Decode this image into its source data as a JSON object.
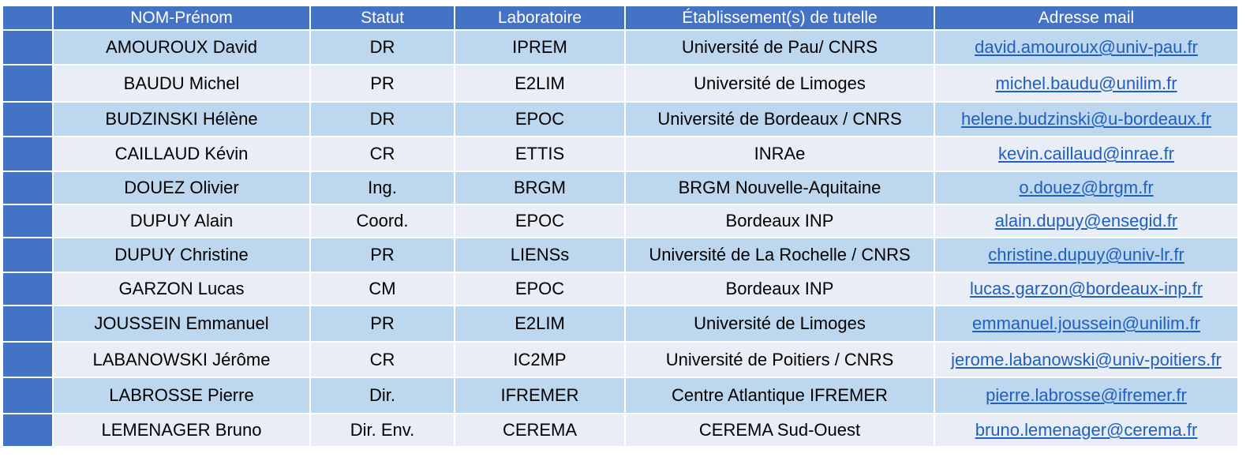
{
  "table": {
    "headers": [
      "NOM-Prénom",
      "Statut",
      "Laboratoire",
      "Établissement(s) de tutelle",
      "Adresse mail"
    ],
    "rows": [
      {
        "name": "AMOUROUX David",
        "status": "DR",
        "lab": "IPREM",
        "institution": "Université de Pau/ CNRS",
        "email": "david.amouroux@univ-pau.fr"
      },
      {
        "name": "BAUDU Michel",
        "status": "PR",
        "lab": "E2LIM",
        "institution": "Université de Limoges",
        "email": "michel.baudu@unilim.fr"
      },
      {
        "name": "BUDZINSKI Hélène",
        "status": "DR",
        "lab": "EPOC",
        "institution": "Université de Bordeaux / CNRS",
        "email": "helene.budzinski@u-bordeaux.fr"
      },
      {
        "name": "CAILLAUD Kévin",
        "status": "CR",
        "lab": "ETTIS",
        "institution": "INRAe",
        "email": "kevin.caillaud@inrae.fr"
      },
      {
        "name": "DOUEZ Olivier",
        "status": "Ing.",
        "lab": "BRGM",
        "institution": "BRGM Nouvelle-Aquitaine",
        "email": "o.douez@brgm.fr"
      },
      {
        "name": "DUPUY Alain",
        "status": "Coord.",
        "lab": "EPOC",
        "institution": "Bordeaux INP",
        "email": "alain.dupuy@ensegid.fr"
      },
      {
        "name": "DUPUY Christine",
        "status": "PR",
        "lab": "LIENSs",
        "institution": "Université de La Rochelle / CNRS",
        "email": "christine.dupuy@univ-lr.fr"
      },
      {
        "name": "GARZON Lucas",
        "status": "CM",
        "lab": "EPOC",
        "institution": "Bordeaux INP",
        "email": "lucas.garzon@bordeaux-inp.fr"
      },
      {
        "name": "JOUSSEIN Emmanuel",
        "status": "PR",
        "lab": "E2LIM",
        "institution": "Université de Limoges",
        "email": "emmanuel.joussein@unilim.fr"
      },
      {
        "name": "LABANOWSKI Jérôme",
        "status": "CR",
        "lab": "IC2MP",
        "institution": "Université de Poitiers / CNRS",
        "email": "jerome.labanowski@univ-poitiers.fr"
      },
      {
        "name": "LABROSSE Pierre",
        "status": "Dir.",
        "lab": "IFREMER",
        "institution": "Centre Atlantique IFREMER",
        "email": "pierre.labrosse@ifremer.fr"
      },
      {
        "name": "LEMENAGER Bruno",
        "status": "Dir. Env.",
        "lab": "CEREMA",
        "institution": "CEREMA Sud-Ouest",
        "email": "bruno.lemenager@cerema.fr"
      }
    ],
    "colors": {
      "header": "#4472c4",
      "row_odd": "#bdd7ee",
      "row_even": "#e9eef6",
      "link": "#1f5fbf"
    }
  }
}
